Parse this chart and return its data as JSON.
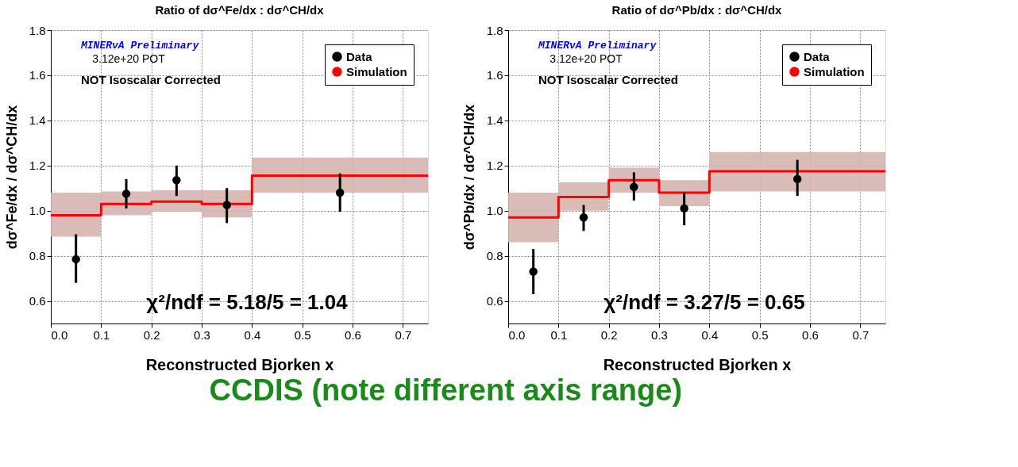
{
  "chart_data": [
    {
      "type": "scatter",
      "title": "Ratio of dσ^Fe/dx : dσ^CH/dx",
      "xlabel": "Reconstructed Bjorken x",
      "ylabel": "dσ^Fe/dx / dσ^CH/dx",
      "xlim": [
        0,
        0.75
      ],
      "xticks": [
        {
          "value": 0,
          "label": "0.0"
        },
        0.1,
        0.2,
        0.3,
        0.4,
        0.5,
        0.6,
        0.7
      ],
      "ylim": [
        0.5,
        1.8
      ],
      "yticks": [
        0.6,
        0.8,
        {
          "value": 1,
          "label": "1.0"
        },
        1.2,
        1.4,
        1.6,
        1.8
      ],
      "grid": true,
      "legend": "top right",
      "series": [
        {
          "name": "Data",
          "type": "scatter",
          "marker": "circle",
          "color": "#000000",
          "x": [
            0.05,
            0.15,
            0.25,
            0.35,
            0.575
          ],
          "values": [
            0.785,
            1.075,
            1.135,
            1.025,
            1.08
          ],
          "errors": [
            [
              0.68,
              0.895
            ],
            [
              1.01,
              1.14
            ],
            [
              1.065,
              1.2
            ],
            [
              0.945,
              1.1
            ],
            [
              0.995,
              1.165
            ]
          ]
        },
        {
          "name": "Simulation",
          "type": "step",
          "color": "#ff0000",
          "x": [
            0,
            0.1,
            0.2,
            0.3,
            0.4,
            0.75
          ],
          "values": [
            0.98,
            1.03,
            1.04,
            1.03,
            1.155,
            1.155
          ],
          "lower": [
            0.885,
            0.98,
            0.995,
            0.97,
            1.08,
            1.08
          ],
          "upper": [
            1.08,
            1.085,
            1.09,
            1.09,
            1.235,
            1.235
          ]
        }
      ],
      "annotations": [
        "MINERνA Preliminary",
        "3.12e+20 POT",
        "NOT Isoscalar Corrected",
        "χ²/ndf = 5.18/5 = 1.04"
      ]
    },
    {
      "type": "scatter",
      "title": "Ratio of dσ^Pb/dx : dσ^CH/dx",
      "xlabel": "Reconstructed Bjorken x",
      "ylabel": "dσ^Pb/dx / dσ^CH/dx",
      "xlim": [
        0,
        0.75
      ],
      "xticks": [
        {
          "value": 0,
          "label": "0.0"
        },
        0.1,
        0.2,
        0.3,
        0.4,
        0.5,
        0.6,
        0.7
      ],
      "ylim": [
        0.5,
        1.8
      ],
      "yticks": [
        0.6,
        0.8,
        {
          "value": 1,
          "label": "1.0"
        },
        1.2,
        1.4,
        1.6,
        1.8
      ],
      "grid": true,
      "legend": "top right",
      "series": [
        {
          "name": "Data",
          "type": "scatter",
          "marker": "circle",
          "color": "#000000",
          "x": [
            0.05,
            0.15,
            0.25,
            0.35,
            0.575
          ],
          "values": [
            0.73,
            0.97,
            1.105,
            1.01,
            1.14
          ],
          "errors": [
            [
              0.63,
              0.83
            ],
            [
              0.91,
              1.025
            ],
            [
              1.045,
              1.17
            ],
            [
              0.935,
              1.08
            ],
            [
              1.065,
              1.225
            ]
          ]
        },
        {
          "name": "Simulation",
          "type": "step",
          "color": "#ff0000",
          "x": [
            0,
            0.1,
            0.2,
            0.3,
            0.4,
            0.75
          ],
          "values": [
            0.97,
            1.06,
            1.135,
            1.08,
            1.175,
            1.175
          ],
          "lower": [
            0.86,
            1.0,
            1.08,
            1.02,
            1.085,
            1.085
          ],
          "upper": [
            1.08,
            1.125,
            1.19,
            1.135,
            1.26,
            1.26
          ]
        }
      ],
      "annotations": [
        "MINERνA Preliminary",
        "3.12e+20 POT",
        "NOT Isoscalar Corrected",
        "χ²/ndf = 3.27/5 = 0.65",
        "CCDIS (note different axis range)"
      ]
    }
  ]
}
